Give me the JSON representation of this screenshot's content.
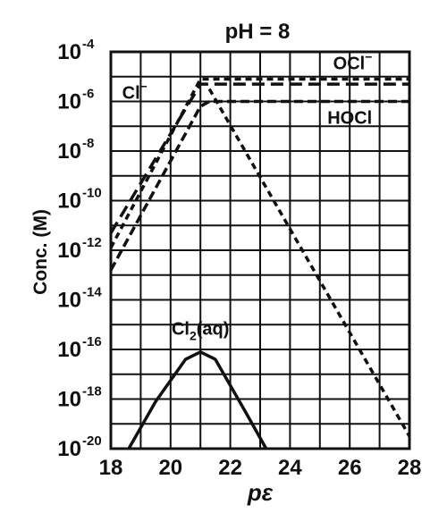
{
  "chart_data": {
    "type": "line",
    "title": "pH = 8",
    "xlabel": "pε",
    "ylabel": "Conc. (M)",
    "xlim": [
      18,
      28
    ],
    "ylim_log10": [
      -20,
      -4
    ],
    "y_scale": "log",
    "grid": true,
    "x_ticks": [
      "18",
      "20",
      "22",
      "24",
      "26",
      "28"
    ],
    "y_ticks": [
      {
        "base": "10",
        "exp": "-4",
        "log10": -4
      },
      {
        "base": "10",
        "exp": "-6",
        "log10": -6
      },
      {
        "base": "10",
        "exp": "-8",
        "log10": -8
      },
      {
        "base": "10",
        "exp": "-10",
        "log10": -10
      },
      {
        "base": "10",
        "exp": "-12",
        "log10": -12
      },
      {
        "base": "10",
        "exp": "-14",
        "log10": -14
      },
      {
        "base": "10",
        "exp": "-16",
        "log10": -16
      },
      {
        "base": "10",
        "exp": "-18",
        "log10": -18
      },
      {
        "base": "10",
        "exp": "-20",
        "log10": -20
      }
    ],
    "series": [
      {
        "name": "Cl⁻",
        "style": "long-dash",
        "x": [
          18,
          21,
          28
        ],
        "log10_y": [
          -11.3,
          -5.3,
          -5.3
        ]
      },
      {
        "name": "OCl⁻",
        "style": "short-dash",
        "x": [
          18,
          21,
          28
        ],
        "log10_y": [
          -11.9,
          -5.1,
          -5.1
        ]
      },
      {
        "name": "HOCl",
        "style": "mixed",
        "x": [
          18,
          21,
          21.3,
          28
        ],
        "log10_y": [
          -12.8,
          -6.2,
          -6.0,
          -6.0
        ]
      },
      {
        "name": "Cl₂(aq)",
        "style": "solid",
        "x": [
          18.6,
          19.5,
          20.5,
          21,
          21.5,
          22.5,
          23.2
        ],
        "log10_y": [
          -20.0,
          -18.1,
          -16.4,
          -16.1,
          -16.4,
          -18.5,
          -20.0
        ]
      },
      {
        "name": "",
        "style": "short-dash",
        "x": [
          21.3,
          28
        ],
        "log10_y": [
          -5.5,
          -19.5
        ]
      }
    ],
    "annotations": [
      {
        "text": "OCl",
        "sup": "−",
        "x": 26.1,
        "log10_y": -4.7
      },
      {
        "text": "Cl",
        "sup": "−",
        "x": 18.8,
        "log10_y": -5.9
      },
      {
        "text": "HOCl",
        "x": 26.0,
        "log10_y": -6.9
      },
      {
        "text": "Cl",
        "sub": "2",
        "rest": "(aq)",
        "x": 21.0,
        "log10_y": -15.4
      }
    ]
  }
}
